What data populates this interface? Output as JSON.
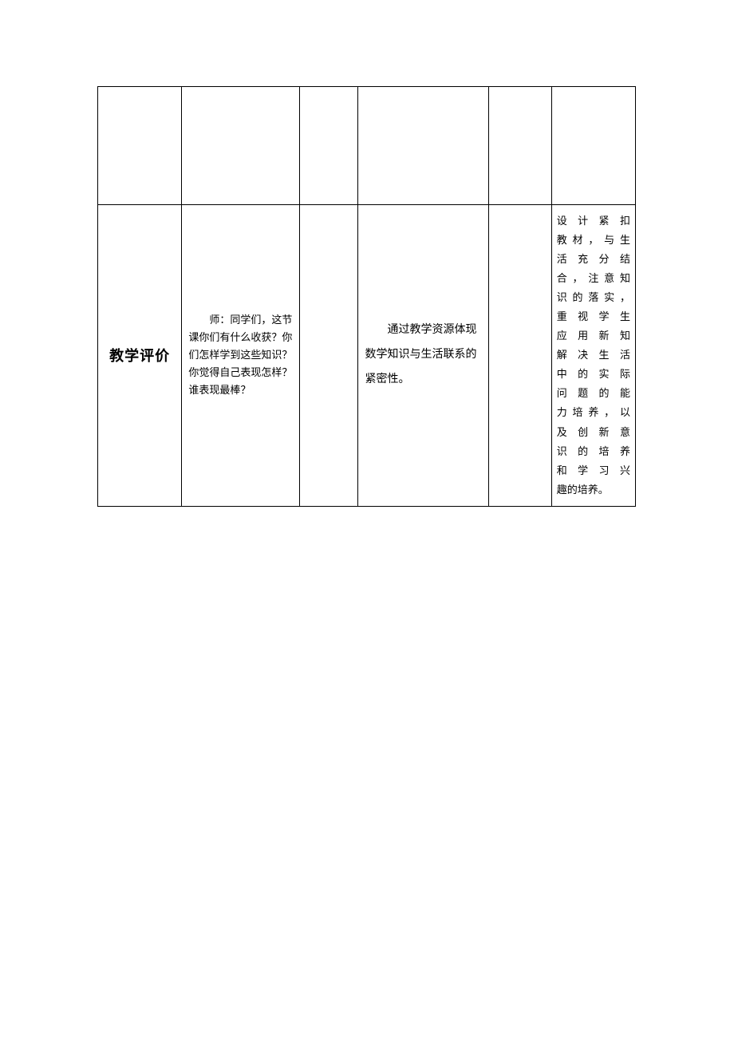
{
  "table": {
    "border_color": "#000000",
    "background_color": "#ffffff",
    "row1": {
      "col1": "",
      "col2": "",
      "col3": "",
      "col4": "",
      "col5": "",
      "col6": ""
    },
    "row2": {
      "col1": "教学评价",
      "col2": "　　师：同学们，这节课你们有什么收获？你们怎样学到这些知识？你觉得自己表现怎样？谁表现最棒？",
      "col3": "",
      "col4": "　　通过教学资源体现数学知识与生活联系的紧密性。",
      "col5": "",
      "col6_lines": [
        "设计紧扣",
        "教材，与生",
        "活充分结",
        "合，注意知",
        "识的落实，",
        "重视学生",
        "应用新知",
        "解决生活",
        "中的实际",
        "问题的能",
        "力培养，以",
        "及创新意",
        "识的培养",
        "和学习兴"
      ],
      "col6_last": "趣的培养。"
    }
  },
  "fonts": {
    "header_size": 18,
    "body_size": 13,
    "col4_size": 14
  },
  "colors": {
    "text": "#000000",
    "border": "#000000",
    "background": "#ffffff"
  }
}
